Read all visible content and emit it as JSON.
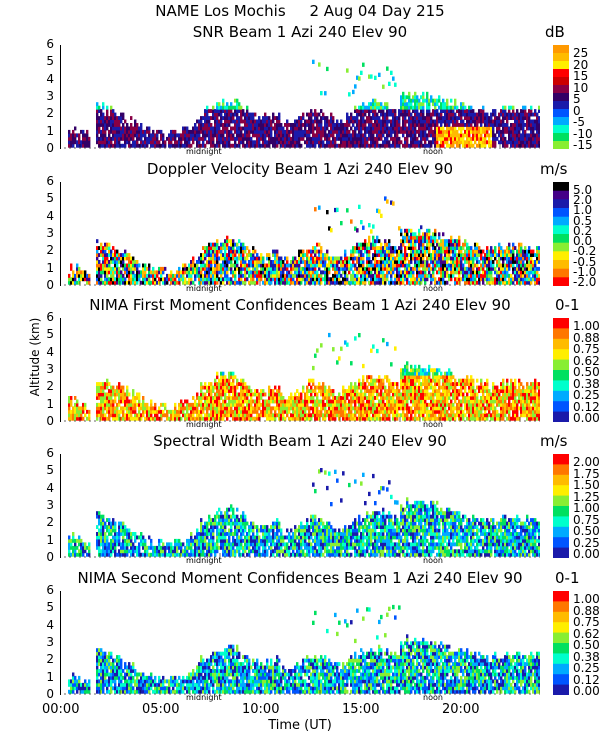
{
  "header": {
    "site": "NAME Los Mochis",
    "date": "2 Aug 04 Day 215",
    "title_line": "NAME Los Mochis     2 Aug 04 Day 215"
  },
  "axes": {
    "ylabel": "Altitude (km)",
    "xlabel": "Time (UT)",
    "xticks": [
      "00:00",
      "05:00",
      "10:00",
      "15:00",
      "20:00"
    ],
    "markers": [
      "midnight",
      "noon"
    ],
    "yticks": [
      "0",
      "1",
      "2",
      "3",
      "4",
      "5",
      "6"
    ]
  },
  "chart_data": [
    {
      "type": "heatmap",
      "title": "SNR Beam 1 Azi 240 Elev 90",
      "unit": "dB",
      "colorbar_labels": [
        "25",
        "20",
        "15",
        "10",
        "5",
        "0",
        "-5",
        "-10",
        "-15"
      ],
      "colors": [
        "#ff9900",
        "#ffbb00",
        "#ffee00",
        "#ff0000",
        "#cc0000",
        "#880044",
        "#330066",
        "#1a1aaa",
        "#0055ff",
        "#00aaff",
        "#00ffcc",
        "#00e060",
        "#88ee33"
      ],
      "x_range_hours": [
        0,
        24
      ],
      "y_range_km": [
        0,
        6
      ]
    },
    {
      "type": "heatmap",
      "title": "Doppler Velocity Beam 1 Azi 240 Elev 90",
      "unit": "m/s",
      "colorbar_labels": [
        "5.0",
        "2.0",
        "1.0",
        "0.5",
        "0.2",
        "0.0",
        "-0.2",
        "-0.5",
        "-1.0",
        "-2.0"
      ],
      "colors": [
        "#000000",
        "#440088",
        "#1a1aaa",
        "#0055ff",
        "#00aaff",
        "#00ffcc",
        "#00e060",
        "#88ee33",
        "#ffee00",
        "#ffbb00",
        "#ff7700",
        "#ff0000"
      ],
      "x_range_hours": [
        0,
        24
      ],
      "y_range_km": [
        0,
        6
      ]
    },
    {
      "type": "heatmap",
      "title": "NIMA First Moment Confidences Beam 1 Azi 240 Elev 90",
      "unit": "0-1",
      "colorbar_labels": [
        "1.00",
        "0.88",
        "0.75",
        "0.62",
        "0.50",
        "0.38",
        "0.25",
        "0.12",
        "0.00"
      ],
      "colors": [
        "#ff0000",
        "#ff7700",
        "#ffbb00",
        "#ffee00",
        "#88ee33",
        "#00e060",
        "#00ffcc",
        "#00aaff",
        "#0055ff",
        "#1a1aaa"
      ],
      "x_range_hours": [
        0,
        24
      ],
      "y_range_km": [
        0,
        6
      ]
    },
    {
      "type": "heatmap",
      "title": "Spectral Width Beam 1 Azi 240 Elev 90",
      "unit": "m/s",
      "colorbar_labels": [
        "2.00",
        "1.75",
        "1.50",
        "1.25",
        "1.00",
        "0.75",
        "0.50",
        "0.25",
        "0.00"
      ],
      "colors": [
        "#ff0000",
        "#ff7700",
        "#ffbb00",
        "#ffee00",
        "#88ee33",
        "#00e060",
        "#00ffcc",
        "#00aaff",
        "#0055ff",
        "#1a1aaa"
      ],
      "x_range_hours": [
        0,
        24
      ],
      "y_range_km": [
        0,
        6
      ]
    },
    {
      "type": "heatmap",
      "title": "NIMA Second Moment Confidences Beam 1 Azi 240 Elev 90",
      "unit": "0-1",
      "colorbar_labels": [
        "1.00",
        "0.88",
        "0.75",
        "0.62",
        "0.50",
        "0.38",
        "0.25",
        "0.12",
        "0.00"
      ],
      "colors": [
        "#ff0000",
        "#ff7700",
        "#ffbb00",
        "#ffee00",
        "#88ee33",
        "#00e060",
        "#00ffcc",
        "#00aaff",
        "#0055ff",
        "#1a1aaa"
      ],
      "x_range_hours": [
        0,
        24
      ],
      "y_range_km": [
        0,
        6
      ]
    }
  ]
}
